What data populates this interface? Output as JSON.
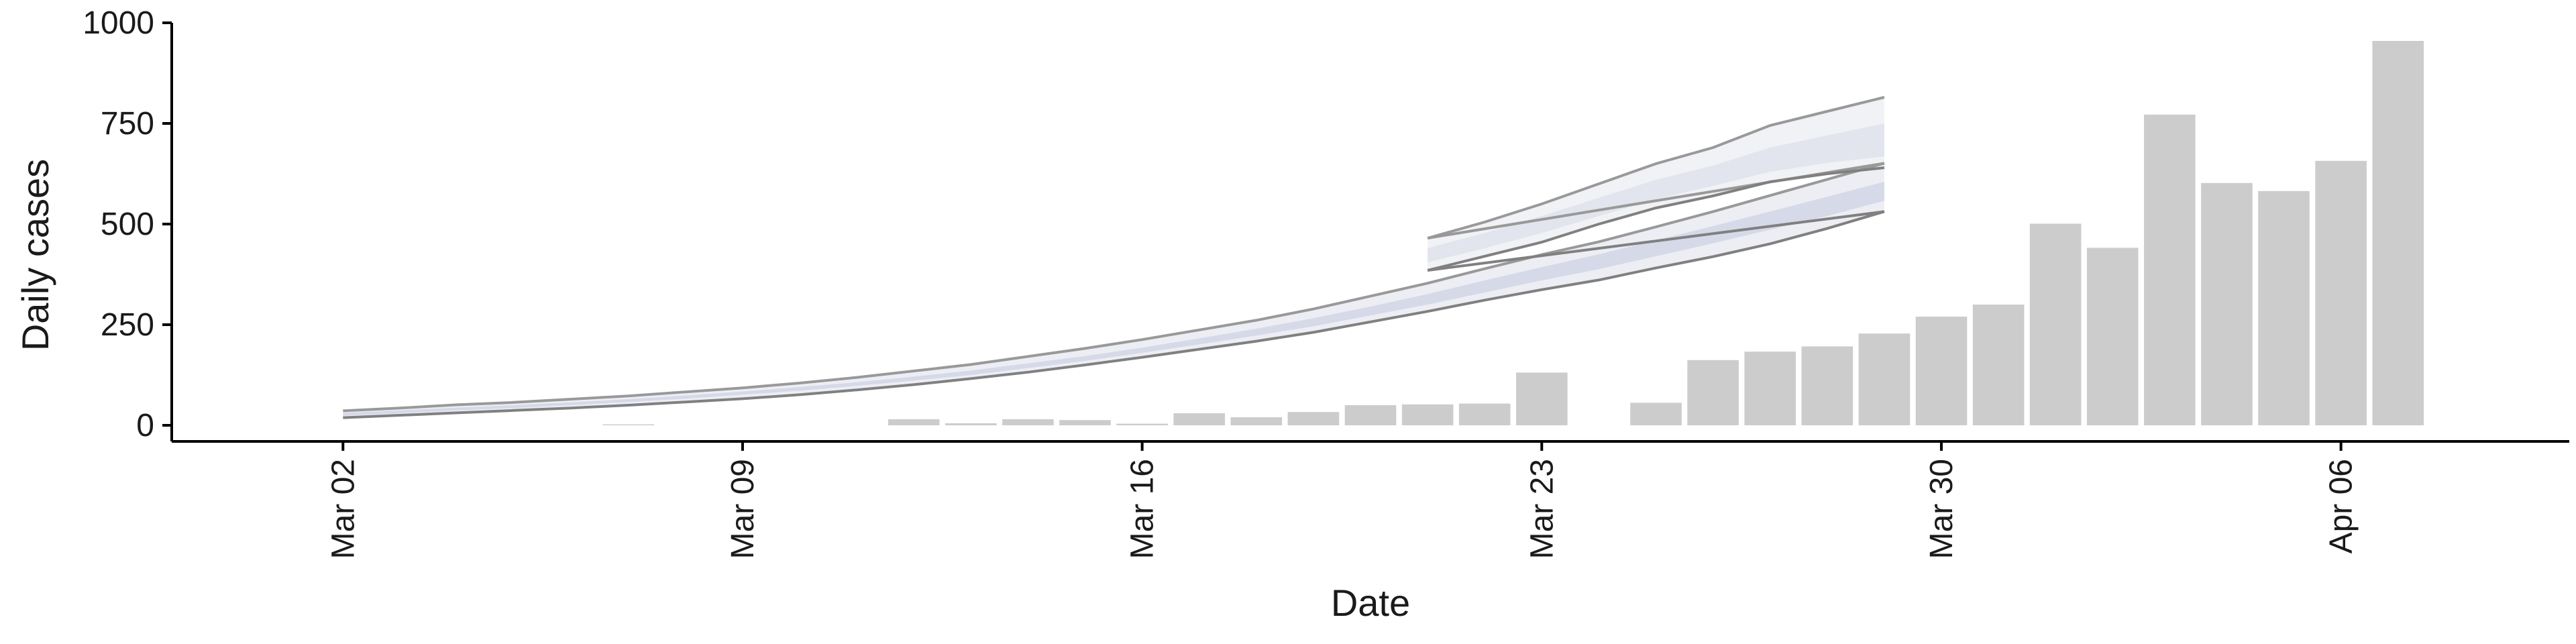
{
  "chart_data": {
    "type": "bar",
    "xlabel": "Date",
    "ylabel": "Daily cases",
    "ylim": [
      -40,
      1000
    ],
    "y_ticks": [
      0,
      250,
      500,
      750,
      1000
    ],
    "x_ticks": [
      {
        "date": "2020-03-02",
        "label": "Mar 02"
      },
      {
        "date": "2020-03-09",
        "label": "Mar 09"
      },
      {
        "date": "2020-03-16",
        "label": "Mar 16"
      },
      {
        "date": "2020-03-23",
        "label": "Mar 23"
      },
      {
        "date": "2020-03-30",
        "label": "Mar 30"
      },
      {
        "date": "2020-04-06",
        "label": "Apr 06"
      }
    ],
    "xlim": [
      "2020-02-28",
      "2020-04-10"
    ],
    "grid": false,
    "colors": {
      "bars": "#cccccc",
      "band_outer": "#eceef4",
      "band_inner": "#d6d9e8",
      "boundary_upper": "#999999",
      "boundary_lower": "#808080"
    },
    "bars": [
      {
        "date": "2020-03-07",
        "value": 2
      },
      {
        "date": "2020-03-12",
        "value": 15
      },
      {
        "date": "2020-03-13",
        "value": 5
      },
      {
        "date": "2020-03-14",
        "value": 15
      },
      {
        "date": "2020-03-15",
        "value": 13
      },
      {
        "date": "2020-03-16",
        "value": 4
      },
      {
        "date": "2020-03-17",
        "value": 30
      },
      {
        "date": "2020-03-18",
        "value": 20
      },
      {
        "date": "2020-03-19",
        "value": 33
      },
      {
        "date": "2020-03-20",
        "value": 50
      },
      {
        "date": "2020-03-21",
        "value": 52
      },
      {
        "date": "2020-03-22",
        "value": 54
      },
      {
        "date": "2020-03-23",
        "value": 131
      },
      {
        "date": "2020-03-25",
        "value": 56
      },
      {
        "date": "2020-03-26",
        "value": 162
      },
      {
        "date": "2020-03-27",
        "value": 183
      },
      {
        "date": "2020-03-28",
        "value": 196
      },
      {
        "date": "2020-03-29",
        "value": 228
      },
      {
        "date": "2020-03-30",
        "value": 270
      },
      {
        "date": "2020-03-31",
        "value": 300
      },
      {
        "date": "2020-04-01",
        "value": 501
      },
      {
        "date": "2020-04-02",
        "value": 441
      },
      {
        "date": "2020-04-03",
        "value": 772
      },
      {
        "date": "2020-04-04",
        "value": 602
      },
      {
        "date": "2020-04-05",
        "value": 582
      },
      {
        "date": "2020-04-06",
        "value": 657
      },
      {
        "date": "2020-04-07",
        "value": 955
      }
    ],
    "bands": {
      "dates": [
        "2020-03-02",
        "2020-03-03",
        "2020-03-04",
        "2020-03-05",
        "2020-03-06",
        "2020-03-07",
        "2020-03-08",
        "2020-03-09",
        "2020-03-10",
        "2020-03-11",
        "2020-03-12",
        "2020-03-13",
        "2020-03-14",
        "2020-03-15",
        "2020-03-16",
        "2020-03-17",
        "2020-03-18",
        "2020-03-19",
        "2020-03-20",
        "2020-03-21",
        "2020-03-22",
        "2020-03-23",
        "2020-03-24",
        "2020-03-25",
        "2020-03-26",
        "2020-03-27",
        "2020-03-28",
        "2020-03-29"
      ],
      "outer_upper": [
        35,
        42,
        50,
        56,
        64,
        72,
        82,
        92,
        104,
        118,
        134,
        150,
        170,
        190,
        212,
        236,
        260,
        288,
        320,
        352,
        388,
        423,
        455,
        492,
        530,
        570,
        610,
        650
      ],
      "outer_lower": [
        20,
        26,
        32,
        38,
        44,
        51,
        59,
        67,
        77,
        89,
        102,
        117,
        133,
        151,
        170,
        190,
        210,
        232,
        258,
        284,
        312,
        338,
        362,
        392,
        420,
        452,
        490,
        532
      ],
      "inner_upper": [
        31,
        37,
        44,
        50,
        57,
        65,
        74,
        84,
        95,
        107,
        121,
        136,
        154,
        172,
        193,
        216,
        240,
        266,
        295,
        326,
        360,
        393,
        425,
        460,
        495,
        531,
        568,
        605
      ],
      "inner_lower": [
        24,
        30,
        37,
        43,
        50,
        58,
        66,
        76,
        86,
        98,
        111,
        125,
        142,
        160,
        180,
        201,
        223,
        246,
        273,
        300,
        330,
        360,
        388,
        420,
        452,
        486,
        520,
        558
      ],
      "boundary_upper": [
        36,
        43,
        51,
        57,
        65,
        73,
        83,
        93,
        105,
        119,
        135,
        151,
        171,
        191,
        213,
        237,
        261,
        289,
        321,
        353,
        389,
        424,
        456,
        493,
        531,
        571,
        611,
        651
      ],
      "boundary_lower": [
        19,
        25,
        31,
        37,
        43,
        50,
        58,
        66,
        76,
        88,
        101,
        116,
        132,
        150,
        169,
        189,
        209,
        231,
        257,
        283,
        311,
        337,
        361,
        391,
        419,
        451,
        489,
        531
      ]
    },
    "forecast": {
      "dates": [
        "2020-03-21",
        "2020-03-22",
        "2020-03-23",
        "2020-03-24",
        "2020-03-25",
        "2020-03-26",
        "2020-03-27",
        "2020-03-28",
        "2020-03-29"
      ],
      "outer_upper": [
        465,
        505,
        550,
        600,
        650,
        690,
        745,
        780,
        815
      ],
      "outer_lower": [
        385,
        420,
        455,
        500,
        540,
        570,
        605,
        625,
        640
      ],
      "inner_upper": [
        440,
        478,
        520,
        565,
        610,
        645,
        690,
        720,
        750
      ],
      "inner_lower": [
        405,
        440,
        478,
        520,
        562,
        595,
        630,
        652,
        668
      ]
    }
  }
}
